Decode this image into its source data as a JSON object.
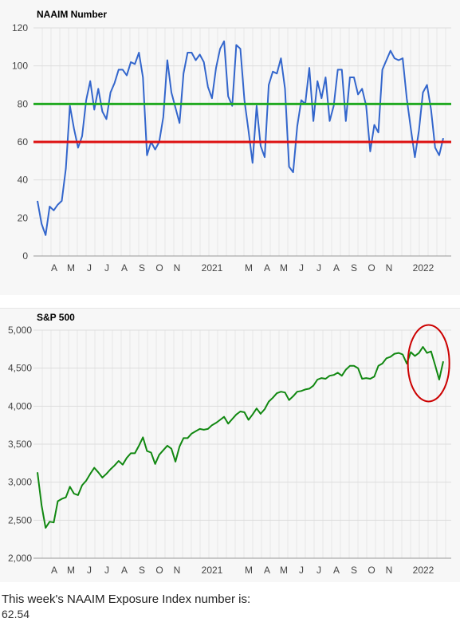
{
  "chart_data": [
    {
      "type": "line",
      "title": "NAAIM Number",
      "ylim": [
        0,
        120
      ],
      "yticks": [
        0,
        20,
        40,
        60,
        80,
        100,
        120
      ],
      "x_tick_labels": [
        "A",
        "M",
        "J",
        "J",
        "A",
        "S",
        "O",
        "N",
        "2021",
        "M",
        "A",
        "M",
        "J",
        "J",
        "A",
        "S",
        "O",
        "N",
        "2022"
      ],
      "grid": true,
      "series": [
        {
          "values": [
            29,
            17,
            11,
            26,
            24,
            27,
            29,
            46,
            79,
            67,
            57,
            63,
            82,
            92,
            77,
            88,
            76,
            72,
            86,
            91,
            98,
            98,
            95,
            102,
            101,
            107,
            94,
            53,
            60,
            56,
            60,
            73,
            103,
            86,
            78,
            70,
            96,
            107,
            107,
            103,
            106,
            102,
            89,
            83,
            99,
            109,
            113,
            84,
            79,
            111,
            109,
            82,
            66,
            49,
            79,
            58,
            52,
            90,
            97,
            96,
            104,
            88,
            47,
            44,
            68,
            82,
            80,
            99,
            71,
            92,
            83,
            94,
            71,
            79,
            98,
            98,
            71,
            94,
            94,
            85,
            88,
            79,
            55,
            69,
            65,
            98,
            103,
            108,
            104,
            103,
            104,
            83,
            67,
            52,
            66,
            86,
            90,
            77,
            57,
            53,
            62
          ]
        }
      ],
      "reference_lines": [
        {
          "value": 80,
          "color": "#22aa22"
        },
        {
          "value": 60,
          "color": "#dd1111"
        }
      ],
      "colors": {
        "line": "#3366cc"
      }
    },
    {
      "type": "line",
      "title": "S&P 500",
      "ylim": [
        2000,
        5000
      ],
      "yticks": [
        2000,
        2500,
        3000,
        3500,
        4000,
        4500,
        5000
      ],
      "ytick_labels": [
        "2,000",
        "2,500",
        "3,000",
        "3,500",
        "4,000",
        "4,500",
        "5,000"
      ],
      "x_tick_labels": [
        "A",
        "M",
        "J",
        "J",
        "A",
        "S",
        "O",
        "N",
        "2021",
        "M",
        "A",
        "M",
        "J",
        "J",
        "A",
        "S",
        "O",
        "N",
        "2022"
      ],
      "grid": true,
      "series": [
        {
          "values": [
            3130,
            2700,
            2400,
            2480,
            2470,
            2750,
            2780,
            2800,
            2940,
            2850,
            2830,
            2960,
            3020,
            3110,
            3190,
            3130,
            3060,
            3110,
            3170,
            3220,
            3280,
            3230,
            3320,
            3380,
            3380,
            3480,
            3590,
            3410,
            3390,
            3240,
            3360,
            3420,
            3480,
            3440,
            3270,
            3470,
            3580,
            3580,
            3640,
            3670,
            3700,
            3690,
            3700,
            3750,
            3780,
            3820,
            3860,
            3770,
            3830,
            3890,
            3930,
            3920,
            3820,
            3890,
            3970,
            3900,
            3960,
            4060,
            4110,
            4170,
            4190,
            4180,
            4080,
            4130,
            4190,
            4200,
            4220,
            4230,
            4270,
            4350,
            4370,
            4360,
            4400,
            4410,
            4440,
            4400,
            4480,
            4530,
            4530,
            4500,
            4360,
            4370,
            4360,
            4390,
            4530,
            4560,
            4630,
            4650,
            4690,
            4700,
            4680,
            4560,
            4710,
            4660,
            4700,
            4780,
            4700,
            4720,
            4540,
            4350,
            4590
          ]
        }
      ],
      "annotations": [
        {
          "type": "circle",
          "color": "#cc0000",
          "around": "latest values"
        }
      ],
      "colors": {
        "line": "#118811"
      }
    }
  ],
  "footer": {
    "text": "This week's NAAIM Exposure Index number is:",
    "value": "62.54"
  }
}
